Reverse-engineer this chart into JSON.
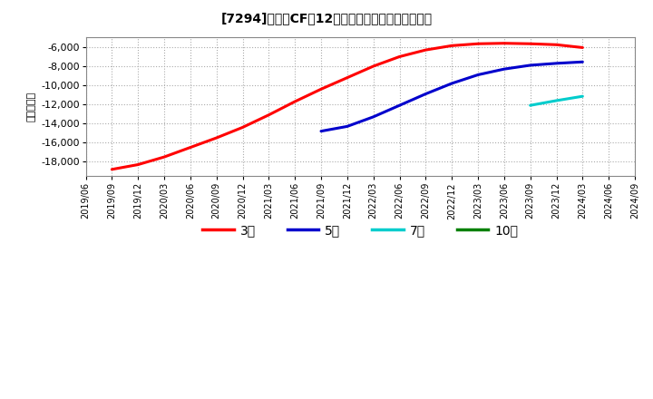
{
  "title": "[7294]　投賄CFだ12か月移動合計の平均値の推移",
  "ylabel": "（百万円）",
  "background_color": "#ffffff",
  "plot_bg_color": "#ffffff",
  "grid_color": "#aaaaaa",
  "ylim": [
    -19500,
    -5000
  ],
  "yticks": [
    -18000,
    -16000,
    -14000,
    -12000,
    -10000,
    -8000,
    -6000
  ],
  "series": {
    "3year": {
      "color": "#ff0000",
      "label": "3年",
      "points": [
        [
          "2019/09",
          -18800
        ],
        [
          "2019/12",
          -18300
        ],
        [
          "2020/03",
          -17500
        ],
        [
          "2020/06",
          -16500
        ],
        [
          "2020/09",
          -15500
        ],
        [
          "2020/12",
          -14400
        ],
        [
          "2021/03",
          -13100
        ],
        [
          "2021/06",
          -11700
        ],
        [
          "2021/09",
          -10400
        ],
        [
          "2021/12",
          -9200
        ],
        [
          "2022/03",
          -8000
        ],
        [
          "2022/06",
          -7000
        ],
        [
          "2022/09",
          -6300
        ],
        [
          "2022/12",
          -5850
        ],
        [
          "2023/03",
          -5650
        ],
        [
          "2023/06",
          -5600
        ],
        [
          "2023/09",
          -5650
        ],
        [
          "2023/12",
          -5750
        ],
        [
          "2024/03",
          -6050
        ]
      ]
    },
    "5year": {
      "color": "#0000cc",
      "label": "5年",
      "points": [
        [
          "2021/09",
          -14800
        ],
        [
          "2021/12",
          -14300
        ],
        [
          "2022/03",
          -13300
        ],
        [
          "2022/06",
          -12100
        ],
        [
          "2022/09",
          -10900
        ],
        [
          "2022/12",
          -9800
        ],
        [
          "2023/03",
          -8900
        ],
        [
          "2023/06",
          -8300
        ],
        [
          "2023/09",
          -7900
        ],
        [
          "2023/12",
          -7700
        ],
        [
          "2024/03",
          -7550
        ]
      ]
    },
    "7year": {
      "color": "#00cccc",
      "label": "7年",
      "points": [
        [
          "2023/09",
          -12100
        ],
        [
          "2023/12",
          -11600
        ],
        [
          "2024/03",
          -11150
        ]
      ]
    },
    "10year": {
      "color": "#008000",
      "label": "10年",
      "points": []
    }
  },
  "x_tick_labels": [
    "2019/06",
    "2019/09",
    "2019/12",
    "2020/03",
    "2020/06",
    "2020/09",
    "2020/12",
    "2021/03",
    "2021/06",
    "2021/09",
    "2021/12",
    "2022/03",
    "2022/06",
    "2022/09",
    "2022/12",
    "2023/03",
    "2023/06",
    "2023/09",
    "2023/12",
    "2024/03",
    "2024/06",
    "2024/09"
  ],
  "legend_items": [
    "3年",
    "5年",
    "7年",
    "10年"
  ],
  "legend_colors": [
    "#ff0000",
    "#0000cc",
    "#00cccc",
    "#008000"
  ]
}
